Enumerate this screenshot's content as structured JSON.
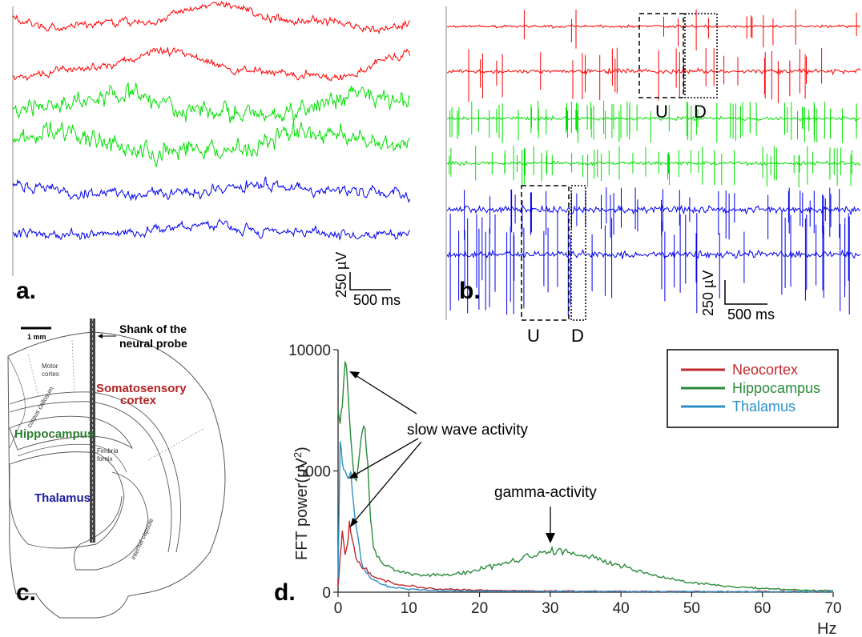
{
  "panels": {
    "a": {
      "label": "a.",
      "scale_v": "250 µV",
      "scale_t": "500 ms",
      "traces": [
        {
          "region": "neocortex",
          "color": "#ff0000"
        },
        {
          "region": "neocortex",
          "color": "#ff0000"
        },
        {
          "region": "hippocampus",
          "color": "#00e000"
        },
        {
          "region": "hippocampus",
          "color": "#00e000"
        },
        {
          "region": "thalamus",
          "color": "#0000ee"
        },
        {
          "region": "thalamus",
          "color": "#0000ee"
        }
      ]
    },
    "b": {
      "label": "b.",
      "scale_v": "250 µV",
      "scale_t": "500 ms",
      "marker_u": "U",
      "marker_d": "D"
    },
    "c": {
      "label": "c.",
      "scale_bar": "1 mm",
      "probe_label_line1": "Shank of the",
      "probe_label_line2": "neural probe",
      "motor_cortex_line1": "Motor",
      "motor_cortex_line2": "cortex",
      "somatosensory_line1": "Somatosensory",
      "somatosensory_line2": "cortex",
      "hippocampus": "Hippocampus",
      "thalamus": "Thalamus",
      "corpus_callosum": "corpus callosum",
      "fimbria_line1": "Fimbria",
      "fimbria_line2": "fornix",
      "internal_capsule": "internal capsule",
      "colors": {
        "somatosensory": "#b22222",
        "hippocampus": "#2e7d32",
        "thalamus": "#1a1aa0"
      }
    },
    "d": {
      "label": "d.",
      "annotation_slow": "slow wave activity",
      "annotation_gamma": "gamma-activity",
      "x_unit": "Hz"
    }
  },
  "chart_data": {
    "type": "line",
    "title": "",
    "xlabel": "Hz",
    "ylabel": "FFT power(µV²)",
    "ylabel_main": "FFT power(µV",
    "ylabel_sup": "2",
    "ylabel_end": ")",
    "xlim": [
      0,
      70
    ],
    "ylim": [
      0,
      10000
    ],
    "xticks": [
      0,
      10,
      20,
      30,
      40,
      50,
      60,
      70
    ],
    "yticks": [
      0,
      5000,
      10000
    ],
    "legend_position": "top-right",
    "series": [
      {
        "name": "Neocortex",
        "color": "#c0282d",
        "x": [
          0,
          0.3,
          0.6,
          1,
          1.3,
          1.6,
          2,
          2.5,
          3,
          3.5,
          4,
          5,
          6,
          7,
          8,
          10,
          12,
          15,
          20,
          25,
          30,
          40,
          50,
          60,
          70
        ],
        "y": [
          200,
          1400,
          2400,
          1600,
          1900,
          2800,
          2100,
          1400,
          1100,
          900,
          900,
          650,
          550,
          450,
          350,
          250,
          180,
          120,
          80,
          60,
          50,
          40,
          30,
          25,
          20
        ]
      },
      {
        "name": "Hippocampus",
        "color": "#2a8a3a",
        "x": [
          0,
          0.3,
          0.6,
          1,
          1.2,
          1.4,
          1.8,
          2.2,
          2.6,
          3,
          3.4,
          3.8,
          4.2,
          4.6,
          5,
          6,
          7,
          8,
          10,
          12,
          15,
          18,
          20,
          22,
          25,
          28,
          30,
          33,
          36,
          40,
          45,
          50,
          55,
          60,
          65,
          70
        ],
        "y": [
          7600,
          6900,
          7800,
          9500,
          9200,
          8200,
          6200,
          4900,
          4600,
          5600,
          6700,
          6800,
          5200,
          3000,
          1900,
          1300,
          1050,
          900,
          800,
          700,
          700,
          800,
          950,
          1100,
          1300,
          1550,
          1700,
          1600,
          1450,
          1100,
          650,
          400,
          250,
          150,
          90,
          60
        ]
      },
      {
        "name": "Thalamus",
        "color": "#2b8fc6",
        "x": [
          0,
          0.3,
          0.6,
          1,
          1.4,
          1.8,
          2.2,
          2.6,
          3,
          3.5,
          4,
          5,
          6,
          7,
          8,
          10,
          12,
          15,
          20,
          30,
          40,
          50,
          60,
          70
        ],
        "y": [
          600,
          6300,
          5400,
          5000,
          4700,
          4900,
          3600,
          2600,
          1800,
          1100,
          800,
          500,
          350,
          250,
          200,
          130,
          90,
          60,
          40,
          30,
          25,
          20,
          15,
          10
        ]
      }
    ]
  }
}
